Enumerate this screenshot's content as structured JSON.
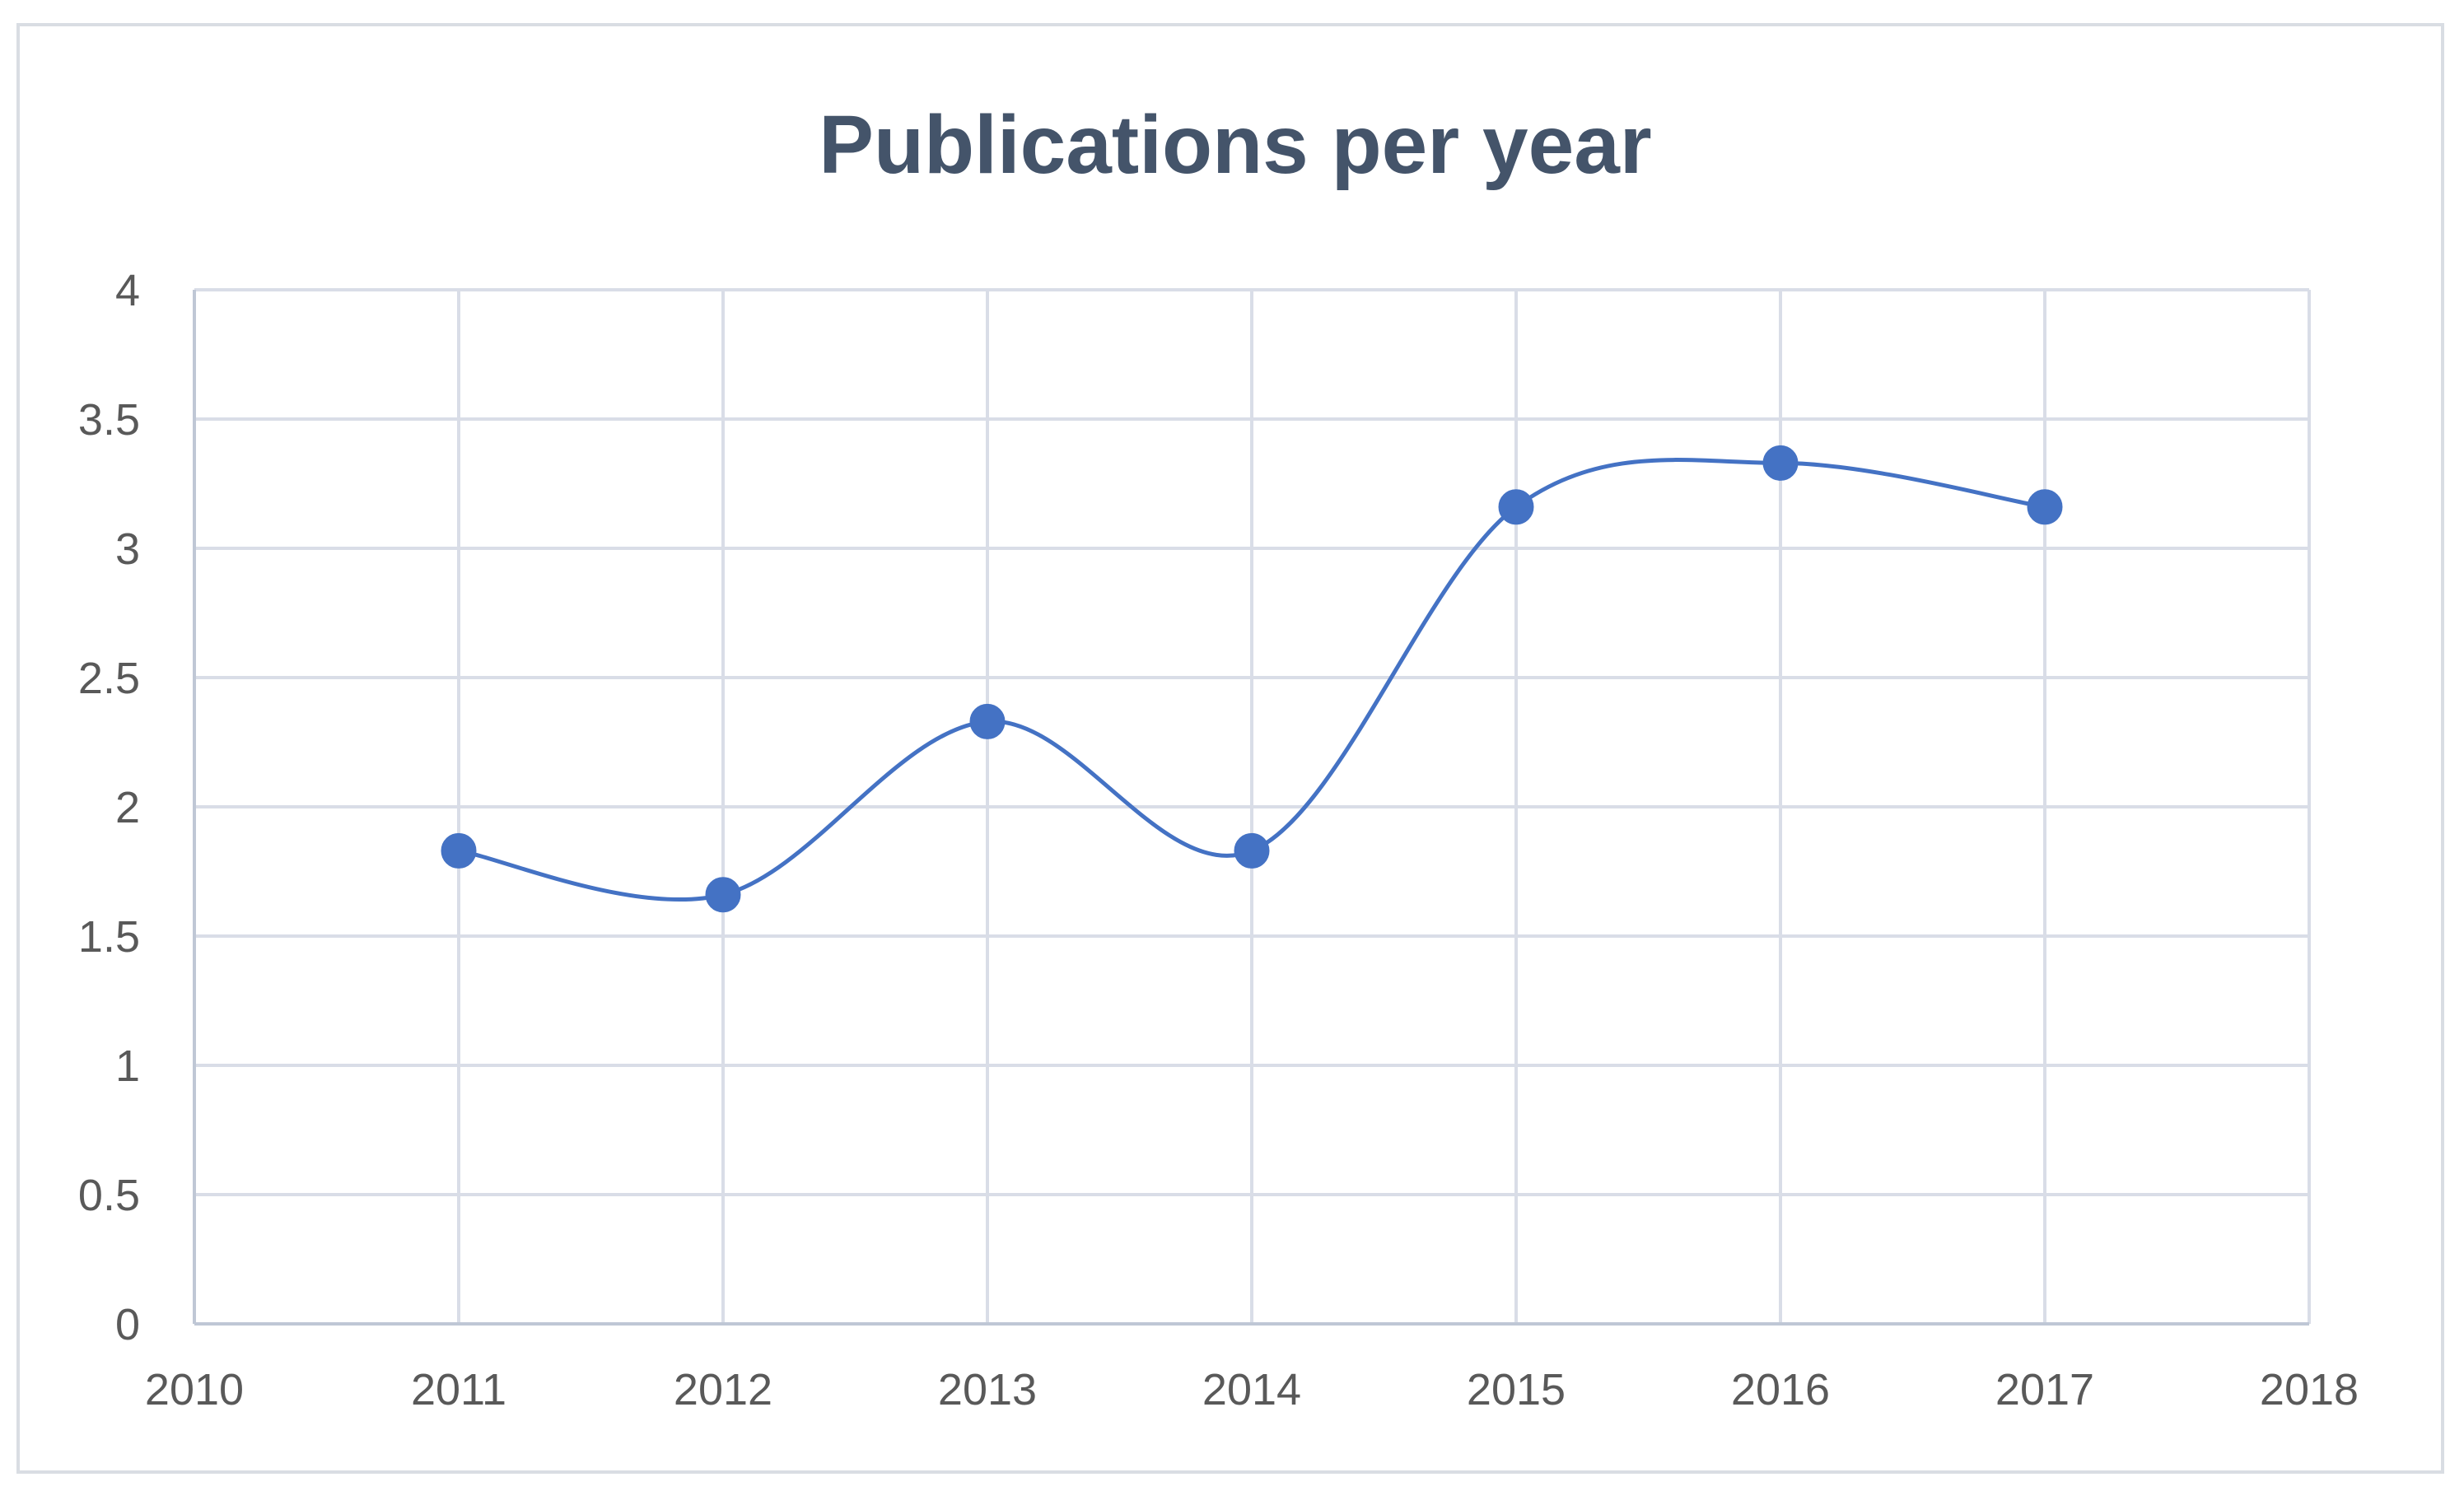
{
  "chart_data": {
    "type": "scatter",
    "title": "Publications per year",
    "xlabel": "",
    "ylabel": "",
    "xlim": [
      2010,
      2018
    ],
    "ylim": [
      0,
      4
    ],
    "x_ticks": [
      "2010",
      "2011",
      "2012",
      "2013",
      "2014",
      "2015",
      "2016",
      "2017",
      "2018"
    ],
    "y_ticks": [
      "0",
      "0.5",
      "1",
      "1.5",
      "2",
      "2.5",
      "3",
      "3.5",
      "4"
    ],
    "grid": true,
    "smoothed_line": true,
    "legend": "none",
    "series": [
      {
        "color": "#4472c4",
        "x": [
          2011,
          2012,
          2013,
          2014,
          2015,
          2016,
          2017
        ],
        "y": [
          1.83,
          1.66,
          2.33,
          1.83,
          3.16,
          3.33,
          3.16
        ]
      }
    ]
  }
}
